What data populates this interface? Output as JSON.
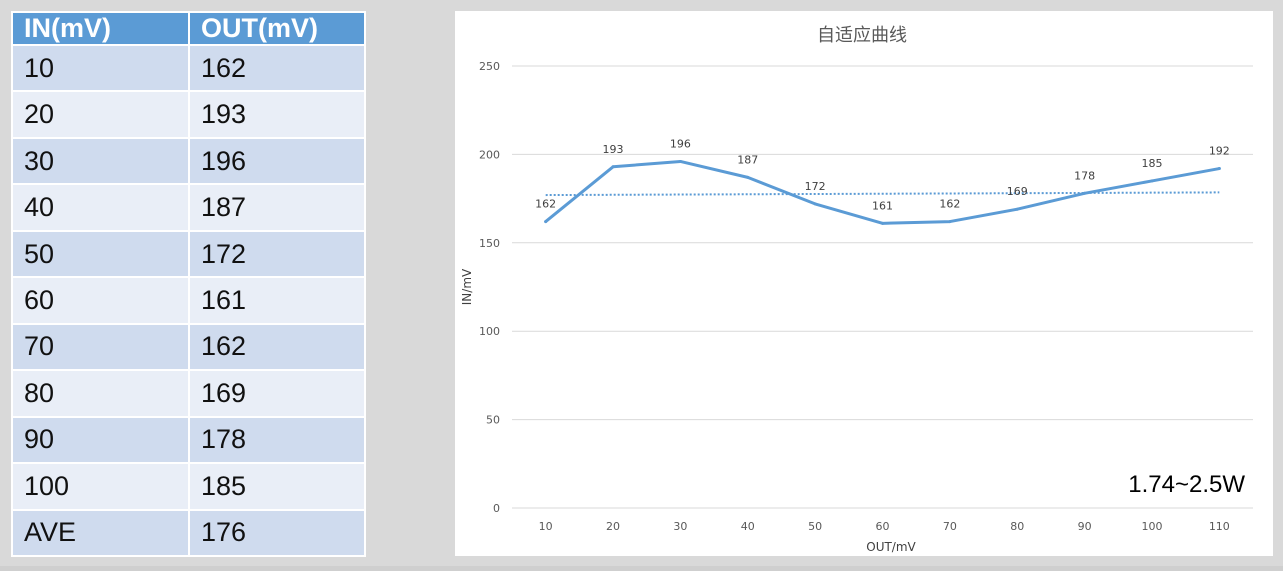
{
  "table": {
    "headers": [
      "IN(mV)",
      "OUT(mV)"
    ],
    "rows": [
      [
        "10",
        "162"
      ],
      [
        "20",
        "193"
      ],
      [
        "30",
        "196"
      ],
      [
        "40",
        "187"
      ],
      [
        "50",
        "172"
      ],
      [
        "60",
        "161"
      ],
      [
        "70",
        "162"
      ],
      [
        "80",
        "169"
      ],
      [
        "90",
        "178"
      ],
      [
        "100",
        "185"
      ],
      [
        "AVE",
        "176"
      ]
    ],
    "header_color": "#5b9bd5",
    "row_color_odd": "#cfdbee",
    "row_color_even": "#e9eef7"
  },
  "chart_data": {
    "type": "line",
    "title": "自适应曲线",
    "xlabel": "OUT/mV",
    "ylabel": "IN/mV",
    "categories": [
      "10",
      "20",
      "30",
      "40",
      "50",
      "60",
      "70",
      "80",
      "90",
      "100",
      "110"
    ],
    "series": [
      {
        "values": [
          162,
          193,
          196,
          187,
          172,
          161,
          162,
          169,
          178,
          185,
          192
        ],
        "color": "#5b9bd5",
        "style": "solid"
      }
    ],
    "trendline": {
      "start": 177,
      "end": 178.5,
      "color": "#5b9bd5",
      "style": "dotted"
    },
    "data_labels": [
      "162",
      "193",
      "196",
      "187",
      "172",
      "161",
      "162",
      "169",
      "178",
      "185",
      "192"
    ],
    "yticks": [
      0,
      50,
      100,
      150,
      200,
      250
    ],
    "ylim": [
      0,
      250
    ],
    "grid": true,
    "annotation": "1.74~2.5W"
  }
}
